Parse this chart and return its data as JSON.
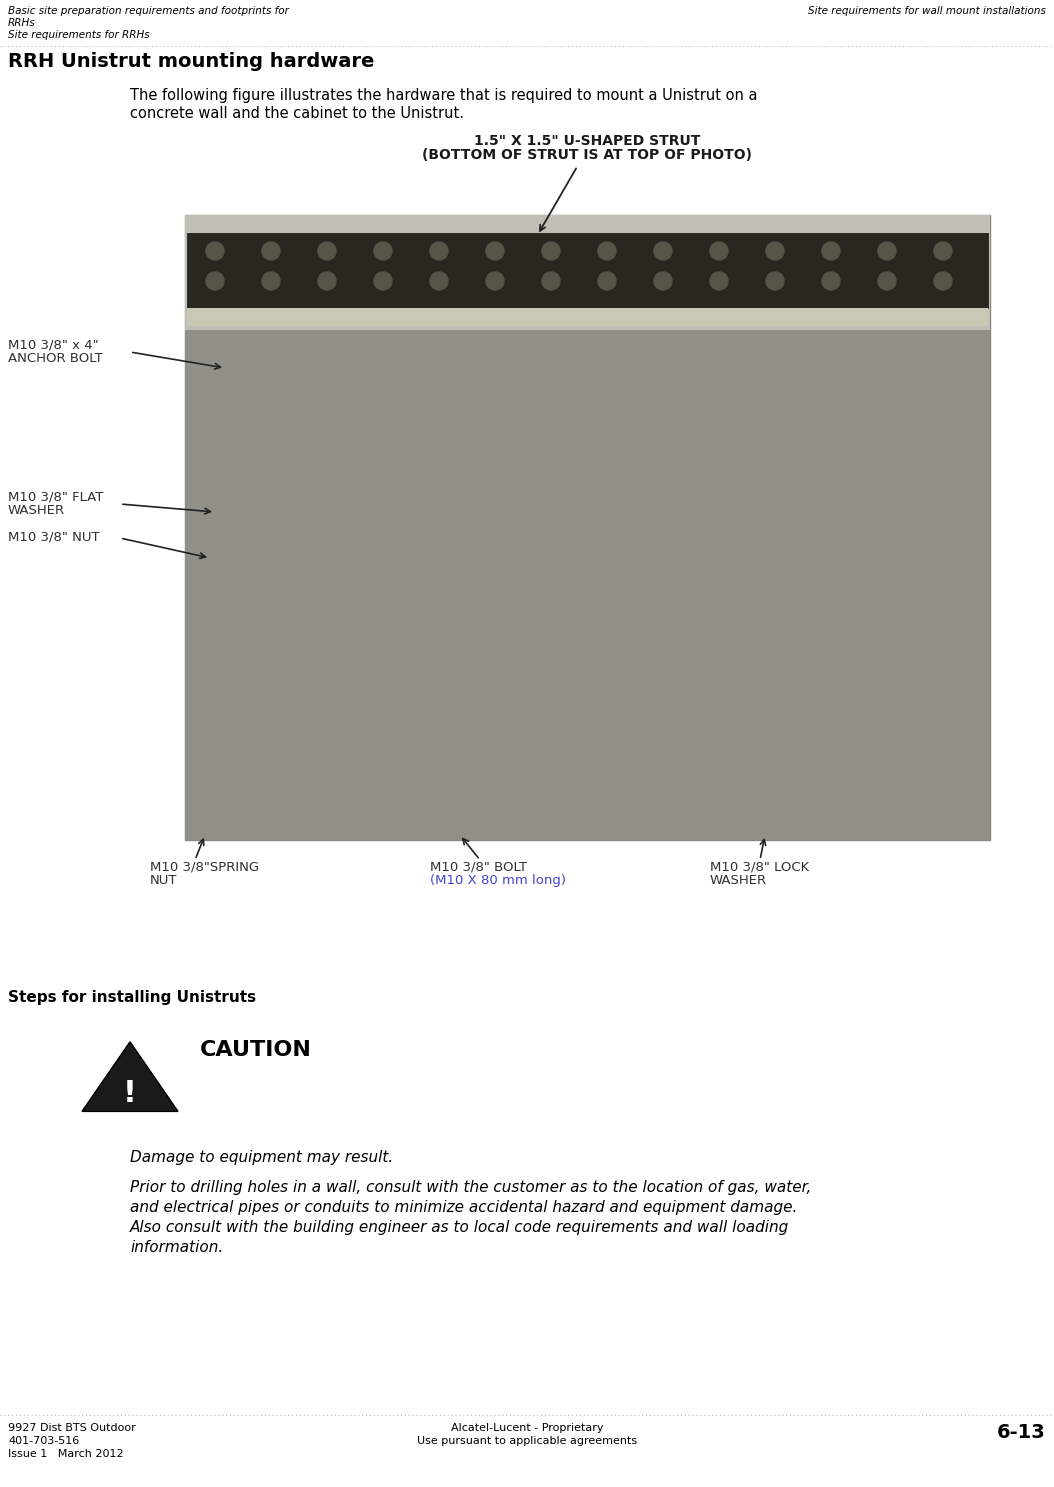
{
  "bg_color": "#ffffff",
  "header_left_line1": "Basic site preparation requirements and footprints for",
  "header_left_line2": "RRHs",
  "header_left_line3": "Site requirements for RRHs",
  "header_right": "Site requirements for wall mount installations",
  "section_title": "RRH Unistrut mounting hardware",
  "body_text_line1": "The following figure illustrates the hardware that is required to mount a Unistrut on a",
  "body_text_line2": "concrete wall and the cabinet to the Unistrut.",
  "steps_title": "Steps for installing Unistruts",
  "caution_title": "CAUTION",
  "caution_body1": "Damage to equipment may result.",
  "caution_body2_line1": "Prior to drilling holes in a wall, consult with the customer as to the location of gas, water,",
  "caution_body2_line2": "and electrical pipes or conduits to minimize accidental hazard and equipment damage.",
  "caution_body2_line3": "Also consult with the building engineer as to local code requirements and wall loading",
  "caution_body2_line4": "information.",
  "footer_left_line1": "9927 Dist BTS Outdoor",
  "footer_left_line2": "401-703-516",
  "footer_left_line3": "Issue 1   March 2012",
  "footer_center_line1": "Alcatel-Lucent - Proprietary",
  "footer_center_line2": "Use pursuant to applicable agreements",
  "footer_right": "6-13",
  "header_font_size": 7.5,
  "section_title_font_size": 14,
  "body_font_size": 10.5,
  "steps_font_size": 11,
  "caution_title_font_size": 16,
  "caution_body_font_size": 11,
  "footer_font_size": 8,
  "label_color_black": "#303030",
  "label_color_blue": "#4444cc",
  "strut_label": "1.5\" X 1.5\" U-SHAPED STRUT",
  "strut_label2": "(BOTTOM OF STRUT IS AT TOP OF PHOTO)",
  "anchor_label1": "M10 3/8\" x 4\"",
  "anchor_label2": "ANCHOR BOLT",
  "flat_washer_label1": "M10 3/8\" FLAT",
  "flat_washer_label2": "WASHER",
  "nut_label": "M10 3/8\" NUT",
  "spring_nut_label1": "M10 3/8\"SPRING",
  "spring_nut_label2": "NUT",
  "bolt_label1": "M10 3/8\" BOLT",
  "bolt_label2": "(M10 X 80 mm long)",
  "lock_washer_label1": "M10 3/8\" LOCK",
  "lock_washer_label2": "WASHER",
  "photo_bg": "#a8a8a0",
  "strut_bar_color": "#303028",
  "strut_channel_color": "#c8c8b8",
  "hardware_bg": "#909088"
}
